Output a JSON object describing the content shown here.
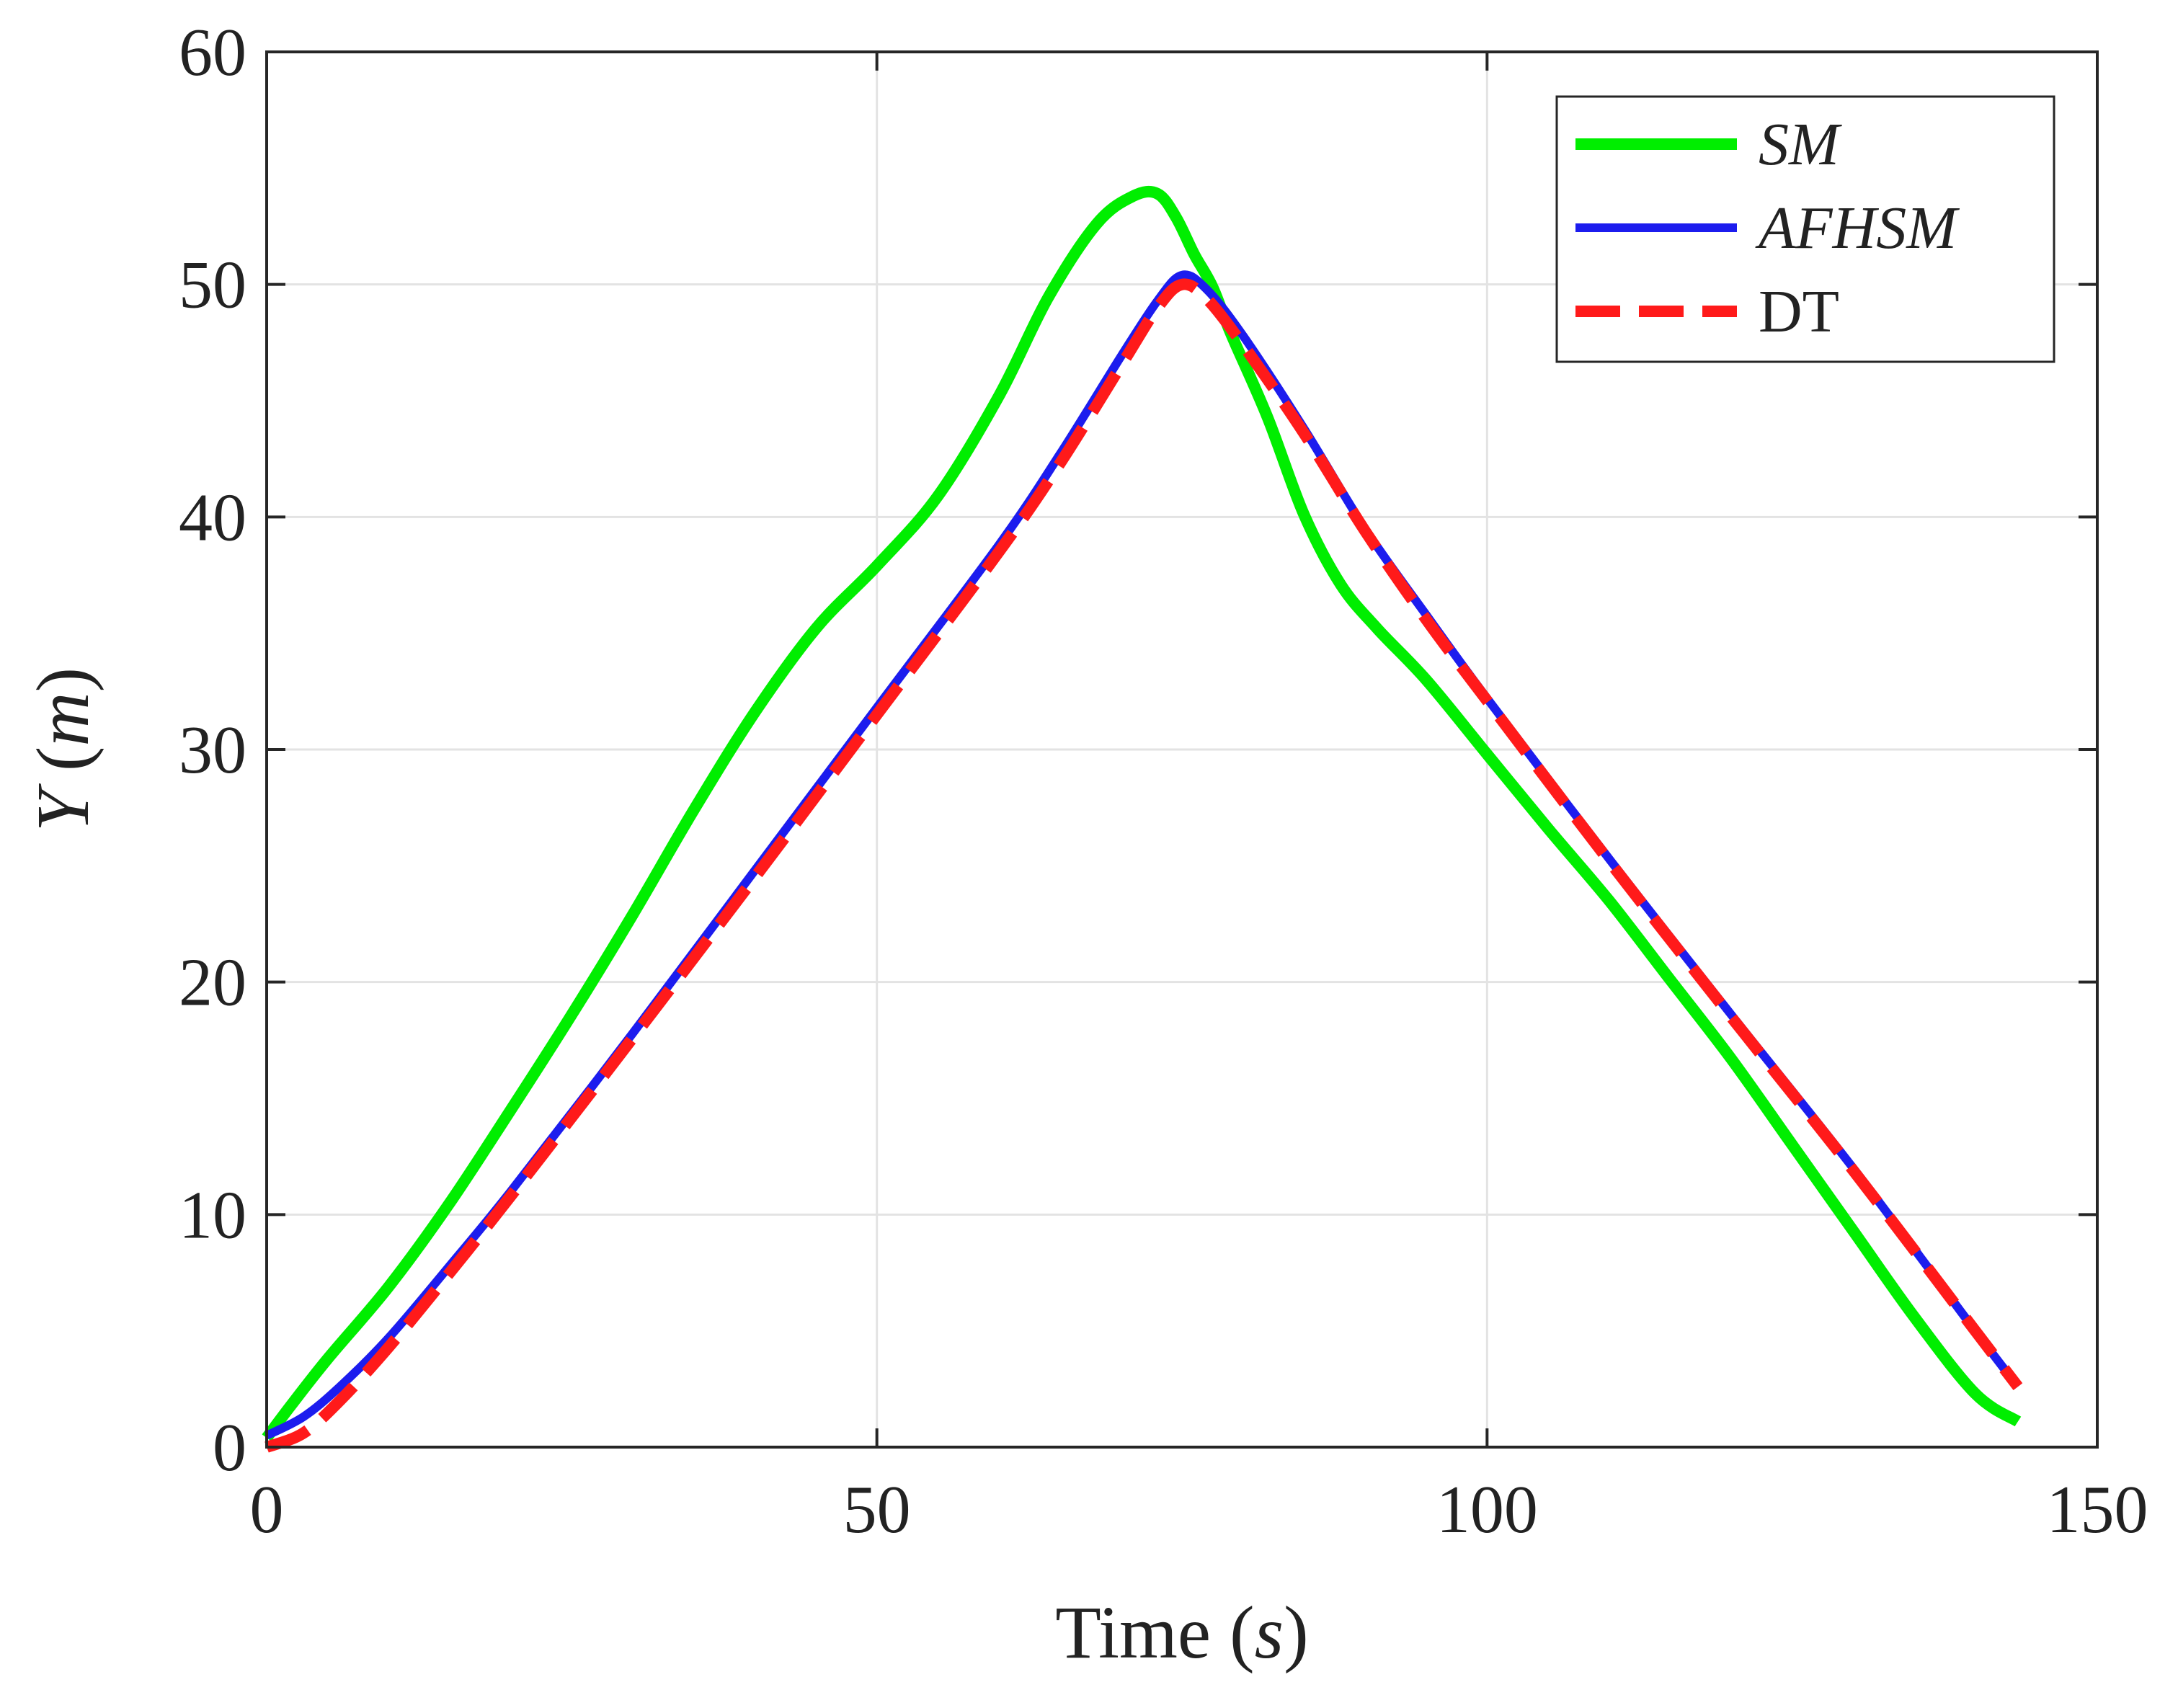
{
  "chart_data": {
    "type": "line",
    "title": "",
    "xlabel": "Time (s)",
    "xlabel_main": "Time",
    "xlabel_unit": "s",
    "ylabel": "Y (m)",
    "ylabel_var": "Y",
    "ylabel_unit": "m",
    "xlim": [
      0,
      150
    ],
    "ylim": [
      0,
      60
    ],
    "xticks": [
      0,
      50,
      100,
      150
    ],
    "yticks": [
      0,
      10,
      20,
      30,
      40,
      50,
      60
    ],
    "xtick_labels": [
      "0",
      "50",
      "100",
      "150"
    ],
    "ytick_labels": [
      "0",
      "10",
      "20",
      "30",
      "40",
      "50",
      "60"
    ],
    "grid": true,
    "legend_position": "top-right",
    "legend_labels": [
      "SM",
      "AFHSM",
      "DT"
    ],
    "series": [
      {
        "name": "SM",
        "color": "#00ee00",
        "style": "solid",
        "x": [
          0,
          2,
          5,
          10,
          15,
          20,
          25,
          30,
          35,
          40,
          45,
          50,
          55,
          60,
          64,
          68,
          71,
          73,
          74.5,
          76,
          77.5,
          79,
          82,
          85,
          88,
          91,
          95,
          100,
          105,
          110,
          115,
          120,
          125,
          130,
          135,
          140,
          143.5
        ],
        "y": [
          0.4,
          1.8,
          3.8,
          6.9,
          10.5,
          14.5,
          18.6,
          22.9,
          27.4,
          31.6,
          35.2,
          37.9,
          40.9,
          45.2,
          49.4,
          52.6,
          53.8,
          53.9,
          52.9,
          51.3,
          49.9,
          47.9,
          44.3,
          40.1,
          37.1,
          35.2,
          33.0,
          29.8,
          26.6,
          23.5,
          20.1,
          16.7,
          13.0,
          9.3,
          5.6,
          2.3,
          1.1
        ]
      },
      {
        "name": "AFHSM",
        "color": "#1c1cee",
        "style": "solid",
        "x": [
          0,
          3,
          6,
          10,
          15,
          20,
          30,
          40,
          50,
          60,
          65,
          70,
          73,
          75,
          77,
          80,
          85,
          90,
          95,
          100,
          110,
          120,
          130,
          140,
          143.5
        ],
        "y": [
          0.5,
          1.3,
          2.6,
          4.7,
          7.8,
          11.0,
          17.8,
          24.8,
          31.8,
          38.8,
          42.7,
          46.9,
          49.3,
          50.4,
          49.8,
          47.8,
          43.8,
          39.5,
          35.8,
          32.2,
          25.3,
          18.6,
          12.0,
          5.0,
          2.6
        ]
      },
      {
        "name": "DT",
        "color": "#ff1a1a",
        "style": "dashed",
        "x": [
          0,
          3,
          6,
          10,
          15,
          20,
          30,
          40,
          50,
          60,
          65,
          70,
          73,
          75,
          77,
          80,
          85,
          90,
          95,
          100,
          110,
          120,
          130,
          140,
          143.5
        ],
        "y": [
          0,
          0.6,
          2.0,
          4.3,
          7.5,
          10.8,
          17.6,
          24.5,
          31.5,
          38.5,
          42.3,
          46.5,
          49.0,
          50.0,
          49.4,
          47.4,
          43.6,
          39.4,
          35.6,
          32.1,
          25.2,
          18.5,
          11.9,
          5.0,
          2.6
        ]
      }
    ]
  }
}
